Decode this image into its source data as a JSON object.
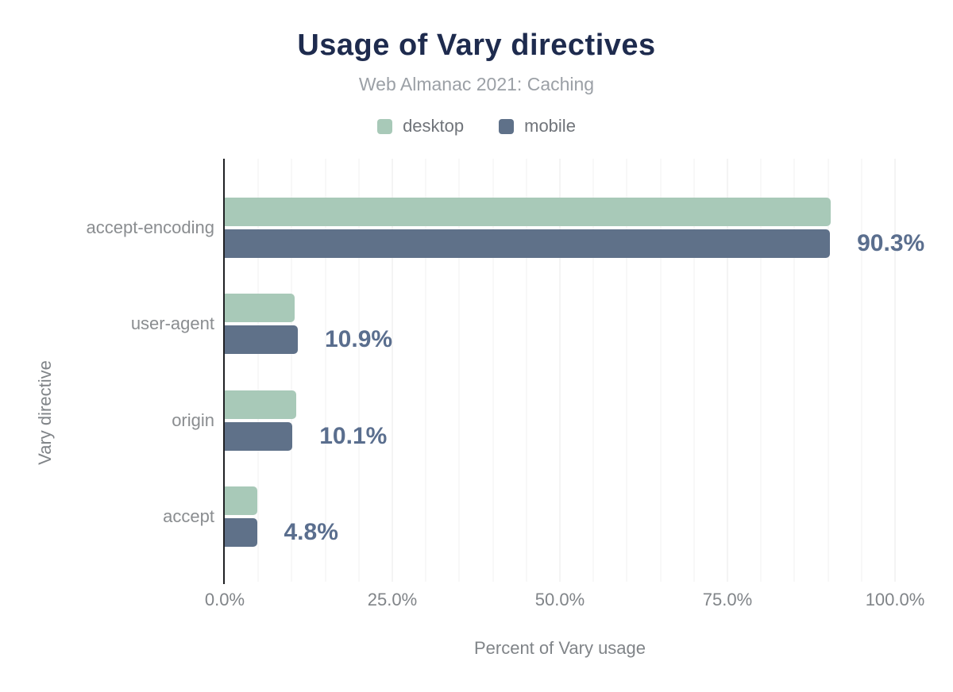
{
  "chart_data": {
    "type": "bar",
    "orientation": "horizontal",
    "title": "Usage of Vary directives",
    "subtitle": "Web Almanac 2021: Caching",
    "categories": [
      "accept-encoding",
      "user-agent",
      "origin",
      "accept"
    ],
    "series": [
      {
        "name": "desktop",
        "color": "#a8c9b8",
        "values": [
          90.4,
          10.4,
          10.7,
          4.9
        ]
      },
      {
        "name": "mobile",
        "color": "#5f7189",
        "values": [
          90.3,
          10.9,
          10.1,
          4.8
        ]
      }
    ],
    "annotations": [
      "90.3%",
      "10.9%",
      "10.1%",
      "4.8%"
    ],
    "annotation_series": "mobile",
    "xlabel": "Percent of Vary usage",
    "ylabel": "Vary directive",
    "x_ticks": [
      "0.0%",
      "25.0%",
      "50.0%",
      "75.0%",
      "100.0%"
    ],
    "xlim": [
      0,
      100
    ],
    "grid": {
      "on": true,
      "minor_step_pct": 5,
      "major_step_pct": 25
    },
    "legend_position": "top",
    "colors": {
      "title": "#1e2b4e",
      "subtitle": "#9ba0a6",
      "axis_text": "#808488",
      "axis_line": "#202124",
      "annotation": "#5a6e8e",
      "gridline": "#f2f2f2",
      "gridline_major": "#e9e9e9"
    }
  }
}
